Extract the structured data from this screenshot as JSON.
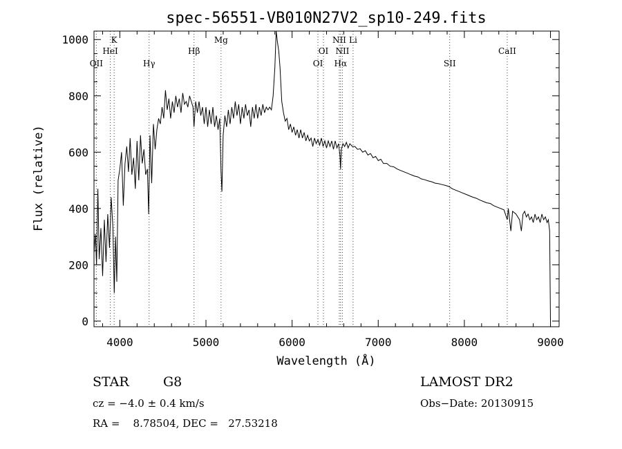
{
  "chart_data": {
    "type": "line",
    "title": "spec-56551-VB010N27V2_sp10-249.fits",
    "xlabel": "Wavelength (Å)",
    "ylabel": "Flux (relative)",
    "xlim": [
      3700,
      9100
    ],
    "ylim": [
      -20,
      1030
    ],
    "xticks": [
      4000,
      5000,
      6000,
      7000,
      8000,
      9000
    ],
    "xtick_labels": [
      "4000",
      "5000",
      "6000",
      "7000",
      "8000",
      "9000"
    ],
    "yticks": [
      0,
      200,
      400,
      600,
      800,
      1000
    ],
    "ytick_labels": [
      "0",
      "200",
      "400",
      "600",
      "800",
      "1000"
    ],
    "grid": false,
    "series": [
      {
        "color": "#000000",
        "points": [
          [
            3700,
            240
          ],
          [
            3715,
            310
          ],
          [
            3730,
            200
          ],
          [
            3745,
            470
          ],
          [
            3760,
            220
          ],
          [
            3780,
            330
          ],
          [
            3800,
            160
          ],
          [
            3820,
            360
          ],
          [
            3840,
            210
          ],
          [
            3860,
            380
          ],
          [
            3880,
            260
          ],
          [
            3900,
            440
          ],
          [
            3920,
            330
          ],
          [
            3935,
            100
          ],
          [
            3950,
            300
          ],
          [
            3965,
            140
          ],
          [
            3980,
            500
          ],
          [
            4000,
            540
          ],
          [
            4020,
            600
          ],
          [
            4040,
            410
          ],
          [
            4060,
            560
          ],
          [
            4080,
            620
          ],
          [
            4100,
            530
          ],
          [
            4120,
            650
          ],
          [
            4140,
            520
          ],
          [
            4160,
            580
          ],
          [
            4180,
            470
          ],
          [
            4200,
            640
          ],
          [
            4220,
            500
          ],
          [
            4240,
            660
          ],
          [
            4260,
            560
          ],
          [
            4280,
            610
          ],
          [
            4300,
            520
          ],
          [
            4320,
            540
          ],
          [
            4335,
            380
          ],
          [
            4350,
            660
          ],
          [
            4370,
            490
          ],
          [
            4390,
            700
          ],
          [
            4410,
            610
          ],
          [
            4430,
            680
          ],
          [
            4450,
            720
          ],
          [
            4470,
            700
          ],
          [
            4490,
            760
          ],
          [
            4510,
            720
          ],
          [
            4530,
            820
          ],
          [
            4550,
            750
          ],
          [
            4570,
            790
          ],
          [
            4590,
            720
          ],
          [
            4610,
            780
          ],
          [
            4630,
            740
          ],
          [
            4650,
            800
          ],
          [
            4670,
            760
          ],
          [
            4690,
            790
          ],
          [
            4710,
            740
          ],
          [
            4730,
            810
          ],
          [
            4750,
            770
          ],
          [
            4770,
            780
          ],
          [
            4790,
            760
          ],
          [
            4810,
            800
          ],
          [
            4830,
            780
          ],
          [
            4850,
            760
          ],
          [
            4861,
            690
          ],
          [
            4880,
            780
          ],
          [
            4900,
            740
          ],
          [
            4920,
            780
          ],
          [
            4940,
            730
          ],
          [
            4960,
            760
          ],
          [
            4980,
            700
          ],
          [
            5000,
            760
          ],
          [
            5020,
            690
          ],
          [
            5040,
            750
          ],
          [
            5060,
            700
          ],
          [
            5080,
            760
          ],
          [
            5100,
            690
          ],
          [
            5120,
            730
          ],
          [
            5140,
            680
          ],
          [
            5160,
            720
          ],
          [
            5175,
            530
          ],
          [
            5185,
            460
          ],
          [
            5200,
            660
          ],
          [
            5220,
            730
          ],
          [
            5240,
            690
          ],
          [
            5260,
            750
          ],
          [
            5280,
            700
          ],
          [
            5300,
            760
          ],
          [
            5320,
            720
          ],
          [
            5340,
            780
          ],
          [
            5360,
            730
          ],
          [
            5380,
            770
          ],
          [
            5400,
            700
          ],
          [
            5420,
            760
          ],
          [
            5440,
            720
          ],
          [
            5460,
            770
          ],
          [
            5480,
            730
          ],
          [
            5500,
            750
          ],
          [
            5520,
            690
          ],
          [
            5540,
            760
          ],
          [
            5560,
            720
          ],
          [
            5580,
            770
          ],
          [
            5600,
            720
          ],
          [
            5620,
            760
          ],
          [
            5640,
            730
          ],
          [
            5660,
            770
          ],
          [
            5680,
            740
          ],
          [
            5700,
            760
          ],
          [
            5720,
            750
          ],
          [
            5740,
            760
          ],
          [
            5760,
            750
          ],
          [
            5780,
            800
          ],
          [
            5800,
            900
          ],
          [
            5815,
            1030
          ],
          [
            5830,
            990
          ],
          [
            5845,
            960
          ],
          [
            5860,
            900
          ],
          [
            5880,
            780
          ],
          [
            5900,
            740
          ],
          [
            5920,
            710
          ],
          [
            5940,
            720
          ],
          [
            5960,
            680
          ],
          [
            5980,
            700
          ],
          [
            6000,
            670
          ],
          [
            6020,
            690
          ],
          [
            6040,
            660
          ],
          [
            6060,
            680
          ],
          [
            6080,
            650
          ],
          [
            6100,
            680
          ],
          [
            6120,
            650
          ],
          [
            6140,
            670
          ],
          [
            6160,
            640
          ],
          [
            6180,
            660
          ],
          [
            6200,
            640
          ],
          [
            6220,
            650
          ],
          [
            6240,
            620
          ],
          [
            6260,
            650
          ],
          [
            6280,
            630
          ],
          [
            6300,
            645
          ],
          [
            6320,
            625
          ],
          [
            6340,
            650
          ],
          [
            6360,
            620
          ],
          [
            6380,
            640
          ],
          [
            6400,
            615
          ],
          [
            6420,
            640
          ],
          [
            6440,
            620
          ],
          [
            6460,
            640
          ],
          [
            6480,
            610
          ],
          [
            6500,
            640
          ],
          [
            6520,
            615
          ],
          [
            6540,
            630
          ],
          [
            6555,
            590
          ],
          [
            6563,
            540
          ],
          [
            6572,
            610
          ],
          [
            6590,
            630
          ],
          [
            6610,
            620
          ],
          [
            6630,
            635
          ],
          [
            6650,
            615
          ],
          [
            6670,
            630
          ],
          [
            6700,
            620
          ],
          [
            6730,
            620
          ],
          [
            6760,
            610
          ],
          [
            6790,
            612
          ],
          [
            6820,
            600
          ],
          [
            6850,
            605
          ],
          [
            6880,
            590
          ],
          [
            6910,
            595
          ],
          [
            6940,
            580
          ],
          [
            6970,
            585
          ],
          [
            7000,
            570
          ],
          [
            7030,
            575
          ],
          [
            7060,
            560
          ],
          [
            7100,
            560
          ],
          [
            7140,
            550
          ],
          [
            7180,
            548
          ],
          [
            7220,
            540
          ],
          [
            7260,
            535
          ],
          [
            7300,
            530
          ],
          [
            7340,
            525
          ],
          [
            7380,
            520
          ],
          [
            7420,
            515
          ],
          [
            7460,
            512
          ],
          [
            7500,
            505
          ],
          [
            7540,
            502
          ],
          [
            7580,
            498
          ],
          [
            7620,
            495
          ],
          [
            7660,
            490
          ],
          [
            7700,
            488
          ],
          [
            7740,
            485
          ],
          [
            7780,
            482
          ],
          [
            7820,
            478
          ],
          [
            7860,
            470
          ],
          [
            7900,
            465
          ],
          [
            7940,
            460
          ],
          [
            7980,
            455
          ],
          [
            8020,
            450
          ],
          [
            8060,
            445
          ],
          [
            8100,
            440
          ],
          [
            8140,
            436
          ],
          [
            8180,
            430
          ],
          [
            8220,
            425
          ],
          [
            8260,
            420
          ],
          [
            8300,
            418
          ],
          [
            8340,
            410
          ],
          [
            8380,
            405
          ],
          [
            8420,
            400
          ],
          [
            8460,
            395
          ],
          [
            8498,
            360
          ],
          [
            8510,
            400
          ],
          [
            8540,
            320
          ],
          [
            8560,
            390
          ],
          [
            8600,
            380
          ],
          [
            8640,
            360
          ],
          [
            8662,
            320
          ],
          [
            8680,
            380
          ],
          [
            8700,
            390
          ],
          [
            8720,
            370
          ],
          [
            8740,
            380
          ],
          [
            8760,
            360
          ],
          [
            8780,
            370
          ],
          [
            8800,
            350
          ],
          [
            8820,
            380
          ],
          [
            8840,
            360
          ],
          [
            8860,
            370
          ],
          [
            8880,
            350
          ],
          [
            8900,
            380
          ],
          [
            8920,
            360
          ],
          [
            8940,
            370
          ],
          [
            8960,
            350
          ],
          [
            8975,
            360
          ],
          [
            8990,
            320
          ],
          [
            9000,
            0
          ]
        ]
      }
    ],
    "line_markers": [
      {
        "label": "OII",
        "wavelength": 3727,
        "row": 3
      },
      {
        "label": "K",
        "wavelength": 3934,
        "row": 1
      },
      {
        "label": "HeI",
        "wavelength": 3889,
        "row": 2
      },
      {
        "label": "Hγ",
        "wavelength": 4340,
        "row": 3
      },
      {
        "label": "Hβ",
        "wavelength": 4861,
        "row": 2
      },
      {
        "label": "Mg",
        "wavelength": 5175,
        "row": 1
      },
      {
        "label": "OI",
        "wavelength": 6300,
        "row": 3
      },
      {
        "label": "OI",
        "wavelength": 6364,
        "row": 2
      },
      {
        "label": "NII",
        "wavelength": 6548,
        "row": 1
      },
      {
        "label": "NII",
        "wavelength": 6584,
        "row": 2
      },
      {
        "label": "Hα",
        "wavelength": 6563,
        "row": 3
      },
      {
        "label": "Li",
        "wavelength": 6708,
        "row": 1
      },
      {
        "label": "SII",
        "wavelength": 7830,
        "row": 3
      },
      {
        "label": "CaII",
        "wavelength": 8498,
        "row": 2
      }
    ],
    "marker_color": "#cc0000"
  },
  "footer": {
    "object_class": "STAR",
    "subclass": "G8",
    "survey": "LAMOST DR2",
    "redshift_text": "cz = −4.0 ± 0.4 km/s",
    "obs_date_text": "Obs−Date: 20130915",
    "coords_text": "RA =    8.78504, DEC =   27.53218"
  }
}
